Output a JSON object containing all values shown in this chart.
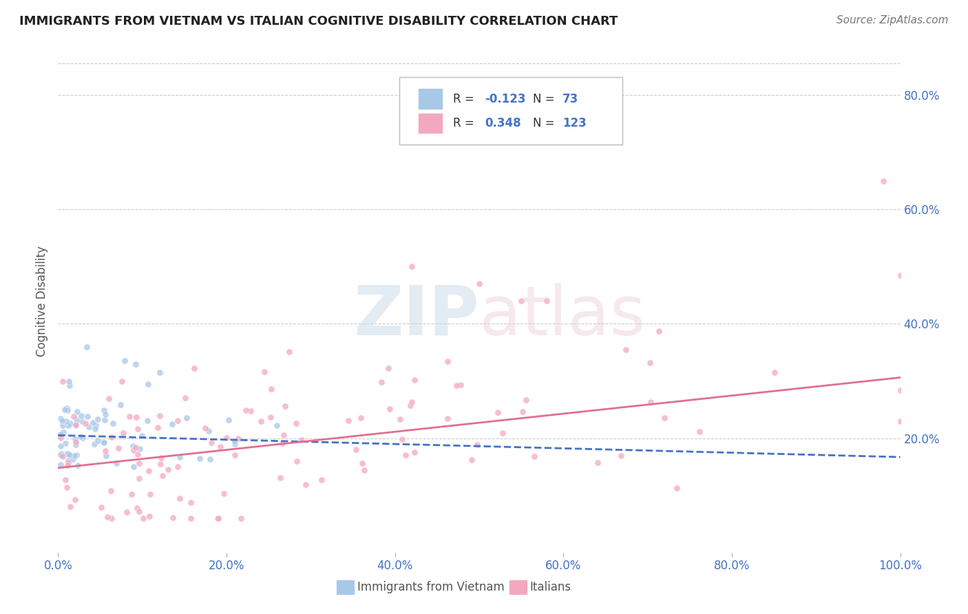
{
  "title": "IMMIGRANTS FROM VIETNAM VS ITALIAN COGNITIVE DISABILITY CORRELATION CHART",
  "source": "Source: ZipAtlas.com",
  "ylabel": "Cognitive Disability",
  "background_color": "#ffffff",
  "grid_color": "#cccccc",
  "blue_color": "#a8c8e8",
  "pink_color": "#f4a8c0",
  "blue_line_color": "#4472c4",
  "pink_line_color": "#e07090",
  "blue_R": -0.123,
  "blue_N": 73,
  "pink_R": 0.348,
  "pink_N": 123,
  "blue_intercept": 0.205,
  "blue_slope": -0.038,
  "pink_intercept": 0.148,
  "pink_slope": 0.158,
  "title_fontsize": 13,
  "source_fontsize": 11,
  "tick_fontsize": 12,
  "ylabel_fontsize": 12
}
